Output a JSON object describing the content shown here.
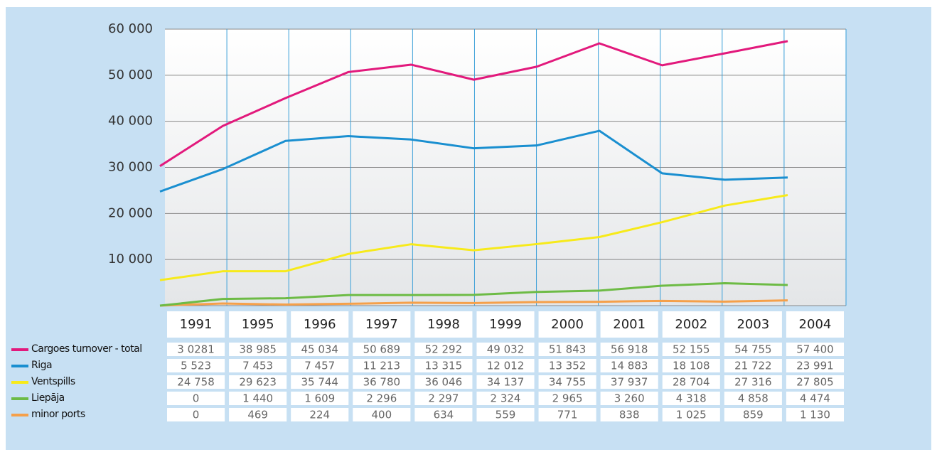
{
  "chart_data": {
    "type": "line",
    "categories": [
      "1991",
      "1995",
      "1996",
      "1997",
      "1998",
      "1999",
      "2000",
      "2001",
      "2002",
      "2003",
      "2004"
    ],
    "series": [
      {
        "name": "Cargoes turnover - total",
        "color": "#e2197c",
        "line_color": "#e2197c",
        "values": [
          30281,
          38985,
          45034,
          50689,
          52292,
          49032,
          51843,
          56918,
          52155,
          54755,
          57400
        ],
        "value_labels": [
          "3 0281",
          "38 985",
          "45 034",
          "50 689",
          "52 292",
          "49 032",
          "51 843",
          "56 918",
          "52 155",
          "54 755",
          "57 400"
        ]
      },
      {
        "name": "Riga",
        "color": "#1a8fd0",
        "line_color": "#f7ea1a",
        "values": [
          5523,
          7453,
          7457,
          11213,
          13315,
          12012,
          13352,
          14883,
          18108,
          21722,
          23991
        ],
        "value_labels": [
          "5 523",
          "7 453",
          "7 457",
          "11 213",
          "13 315",
          "12 012",
          "13 352",
          "14 883",
          "18 108",
          "21 722",
          "23 991"
        ]
      },
      {
        "name": "Ventspills",
        "color": "#f7ea1a",
        "line_color": "#1a8fd0",
        "values": [
          24758,
          29623,
          35744,
          36780,
          36046,
          34137,
          34755,
          37937,
          28704,
          27316,
          27805
        ],
        "value_labels": [
          "24 758",
          "29 623",
          "35 744",
          "36 780",
          "36 046",
          "34 137",
          "34 755",
          "37 937",
          "28 704",
          "27 316",
          "27 805"
        ]
      },
      {
        "name": "Liepāja",
        "color": "#6dbb45",
        "line_color": "#6dbb45",
        "values": [
          0,
          1440,
          1609,
          2296,
          2297,
          2324,
          2965,
          3260,
          4318,
          4858,
          4474
        ],
        "value_labels": [
          "0",
          "1 440",
          "1 609",
          "2 296",
          "2 297",
          "2 324",
          "2 965",
          "3 260",
          "4 318",
          "4 858",
          "4 474"
        ]
      },
      {
        "name": "minor ports",
        "color": "#f5a04a",
        "line_color": "#f5a04a",
        "values": [
          0,
          469,
          224,
          400,
          634,
          559,
          771,
          838,
          1025,
          859,
          1130
        ],
        "value_labels": [
          "0",
          "469",
          "224",
          "400",
          "634",
          "559",
          "771",
          "838",
          "1 025",
          "859",
          "1 130"
        ]
      }
    ],
    "ylim": [
      0,
      60000
    ],
    "yticks": [
      {
        "value": 10000,
        "label": "10 000"
      },
      {
        "value": 20000,
        "label": "20 000"
      },
      {
        "value": 30000,
        "label": "30 000"
      },
      {
        "value": 40000,
        "label": "40 000"
      },
      {
        "value": 50000,
        "label": "50 000"
      },
      {
        "value": 60000,
        "label": "60 000"
      }
    ],
    "grid": true
  }
}
